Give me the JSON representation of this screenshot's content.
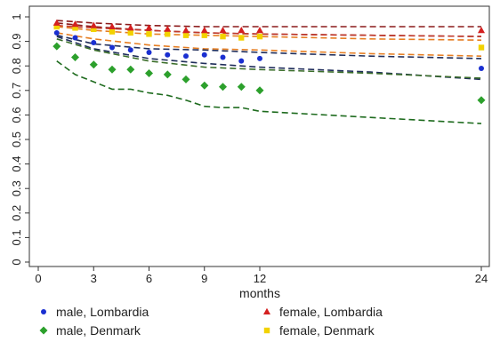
{
  "chart_data": {
    "type": "scatter",
    "title": "",
    "xlabel": "months",
    "ylabel": "",
    "xlim": [
      0,
      24
    ],
    "ylim": [
      0,
      1
    ],
    "xticks": [
      0,
      3,
      6,
      9,
      12,
      24
    ],
    "yticks": [
      0,
      0.1,
      0.2,
      0.3,
      0.4,
      0.5,
      0.6,
      0.7,
      0.8,
      0.9,
      1
    ],
    "grid": false,
    "legend_position": "bottom",
    "series": [
      {
        "name": "male, Lombardia",
        "marker": "circle",
        "color": "#1a2fd1",
        "points": [
          [
            1,
            0.935
          ],
          [
            2,
            0.915
          ],
          [
            3,
            0.895
          ],
          [
            4,
            0.875
          ],
          [
            5,
            0.865
          ],
          [
            6,
            0.855
          ],
          [
            7,
            0.845
          ],
          [
            8,
            0.84
          ],
          [
            9,
            0.845
          ],
          [
            10,
            0.835
          ],
          [
            11,
            0.82
          ],
          [
            12,
            0.83
          ],
          [
            24,
            0.79
          ]
        ]
      },
      {
        "name": "female, Lombardia",
        "marker": "triangle",
        "color": "#d42020",
        "points": [
          [
            1,
            0.975
          ],
          [
            2,
            0.97
          ],
          [
            3,
            0.965
          ],
          [
            4,
            0.96
          ],
          [
            5,
            0.955
          ],
          [
            6,
            0.955
          ],
          [
            7,
            0.95
          ],
          [
            8,
            0.945
          ],
          [
            9,
            0.945
          ],
          [
            10,
            0.945
          ],
          [
            11,
            0.945
          ],
          [
            12,
            0.945
          ],
          [
            24,
            0.945
          ]
        ]
      },
      {
        "name": "male, Denmark",
        "marker": "diamond",
        "color": "#2ca02c",
        "points": [
          [
            1,
            0.88
          ],
          [
            2,
            0.835
          ],
          [
            3,
            0.805
          ],
          [
            4,
            0.785
          ],
          [
            5,
            0.785
          ],
          [
            6,
            0.77
          ],
          [
            7,
            0.765
          ],
          [
            8,
            0.745
          ],
          [
            9,
            0.72
          ],
          [
            10,
            0.715
          ],
          [
            11,
            0.715
          ],
          [
            12,
            0.7
          ],
          [
            24,
            0.66
          ]
        ]
      },
      {
        "name": "female, Denmark",
        "marker": "square",
        "color": "#f2d200",
        "points": [
          [
            1,
            0.96
          ],
          [
            2,
            0.955
          ],
          [
            3,
            0.95
          ],
          [
            4,
            0.94
          ],
          [
            5,
            0.935
          ],
          [
            6,
            0.93
          ],
          [
            7,
            0.93
          ],
          [
            8,
            0.925
          ],
          [
            9,
            0.925
          ],
          [
            10,
            0.92
          ],
          [
            11,
            0.915
          ],
          [
            12,
            0.92
          ],
          [
            24,
            0.875
          ]
        ]
      }
    ],
    "curves": [
      {
        "color": "#8b1a1a",
        "points": [
          [
            1,
            0.985
          ],
          [
            3,
            0.975
          ],
          [
            6,
            0.965
          ],
          [
            9,
            0.96
          ],
          [
            12,
            0.96
          ],
          [
            18,
            0.96
          ],
          [
            24,
            0.96
          ]
        ]
      },
      {
        "color": "#8b1a1a",
        "points": [
          [
            1,
            0.975
          ],
          [
            3,
            0.96
          ],
          [
            6,
            0.945
          ],
          [
            9,
            0.935
          ],
          [
            12,
            0.93
          ],
          [
            18,
            0.925
          ],
          [
            24,
            0.92
          ]
        ]
      },
      {
        "color": "#c0392b",
        "points": [
          [
            1,
            0.965
          ],
          [
            3,
            0.955
          ],
          [
            6,
            0.945
          ],
          [
            9,
            0.935
          ],
          [
            12,
            0.93
          ],
          [
            18,
            0.925
          ],
          [
            24,
            0.92
          ]
        ]
      },
      {
        "color": "#e67e22",
        "points": [
          [
            1,
            0.96
          ],
          [
            3,
            0.945
          ],
          [
            6,
            0.93
          ],
          [
            9,
            0.925
          ],
          [
            12,
            0.92
          ],
          [
            18,
            0.91
          ],
          [
            24,
            0.905
          ]
        ]
      },
      {
        "color": "#e67e22",
        "points": [
          [
            1,
            0.935
          ],
          [
            3,
            0.91
          ],
          [
            6,
            0.885
          ],
          [
            9,
            0.87
          ],
          [
            12,
            0.865
          ],
          [
            18,
            0.85
          ],
          [
            24,
            0.84
          ]
        ]
      },
      {
        "color": "#1f2d5a",
        "points": [
          [
            1,
            0.925
          ],
          [
            3,
            0.89
          ],
          [
            6,
            0.87
          ],
          [
            9,
            0.865
          ],
          [
            12,
            0.855
          ],
          [
            18,
            0.84
          ],
          [
            24,
            0.83
          ]
        ]
      },
      {
        "color": "#1f2d5a",
        "points": [
          [
            1,
            0.92
          ],
          [
            3,
            0.87
          ],
          [
            6,
            0.83
          ],
          [
            9,
            0.81
          ],
          [
            12,
            0.795
          ],
          [
            18,
            0.775
          ],
          [
            24,
            0.745
          ]
        ]
      },
      {
        "color": "#3b6e2a",
        "points": [
          [
            1,
            0.91
          ],
          [
            3,
            0.865
          ],
          [
            6,
            0.82
          ],
          [
            9,
            0.795
          ],
          [
            12,
            0.785
          ],
          [
            18,
            0.77
          ],
          [
            24,
            0.75
          ]
        ]
      },
      {
        "color": "#1e6b1e",
        "points": [
          [
            1,
            0.82
          ],
          [
            2,
            0.765
          ],
          [
            3,
            0.735
          ],
          [
            4,
            0.705
          ],
          [
            5,
            0.705
          ],
          [
            6,
            0.69
          ],
          [
            7,
            0.68
          ],
          [
            8,
            0.66
          ],
          [
            9,
            0.635
          ],
          [
            10,
            0.63
          ],
          [
            11,
            0.63
          ],
          [
            12,
            0.615
          ],
          [
            18,
            0.59
          ],
          [
            24,
            0.565
          ]
        ]
      }
    ]
  }
}
